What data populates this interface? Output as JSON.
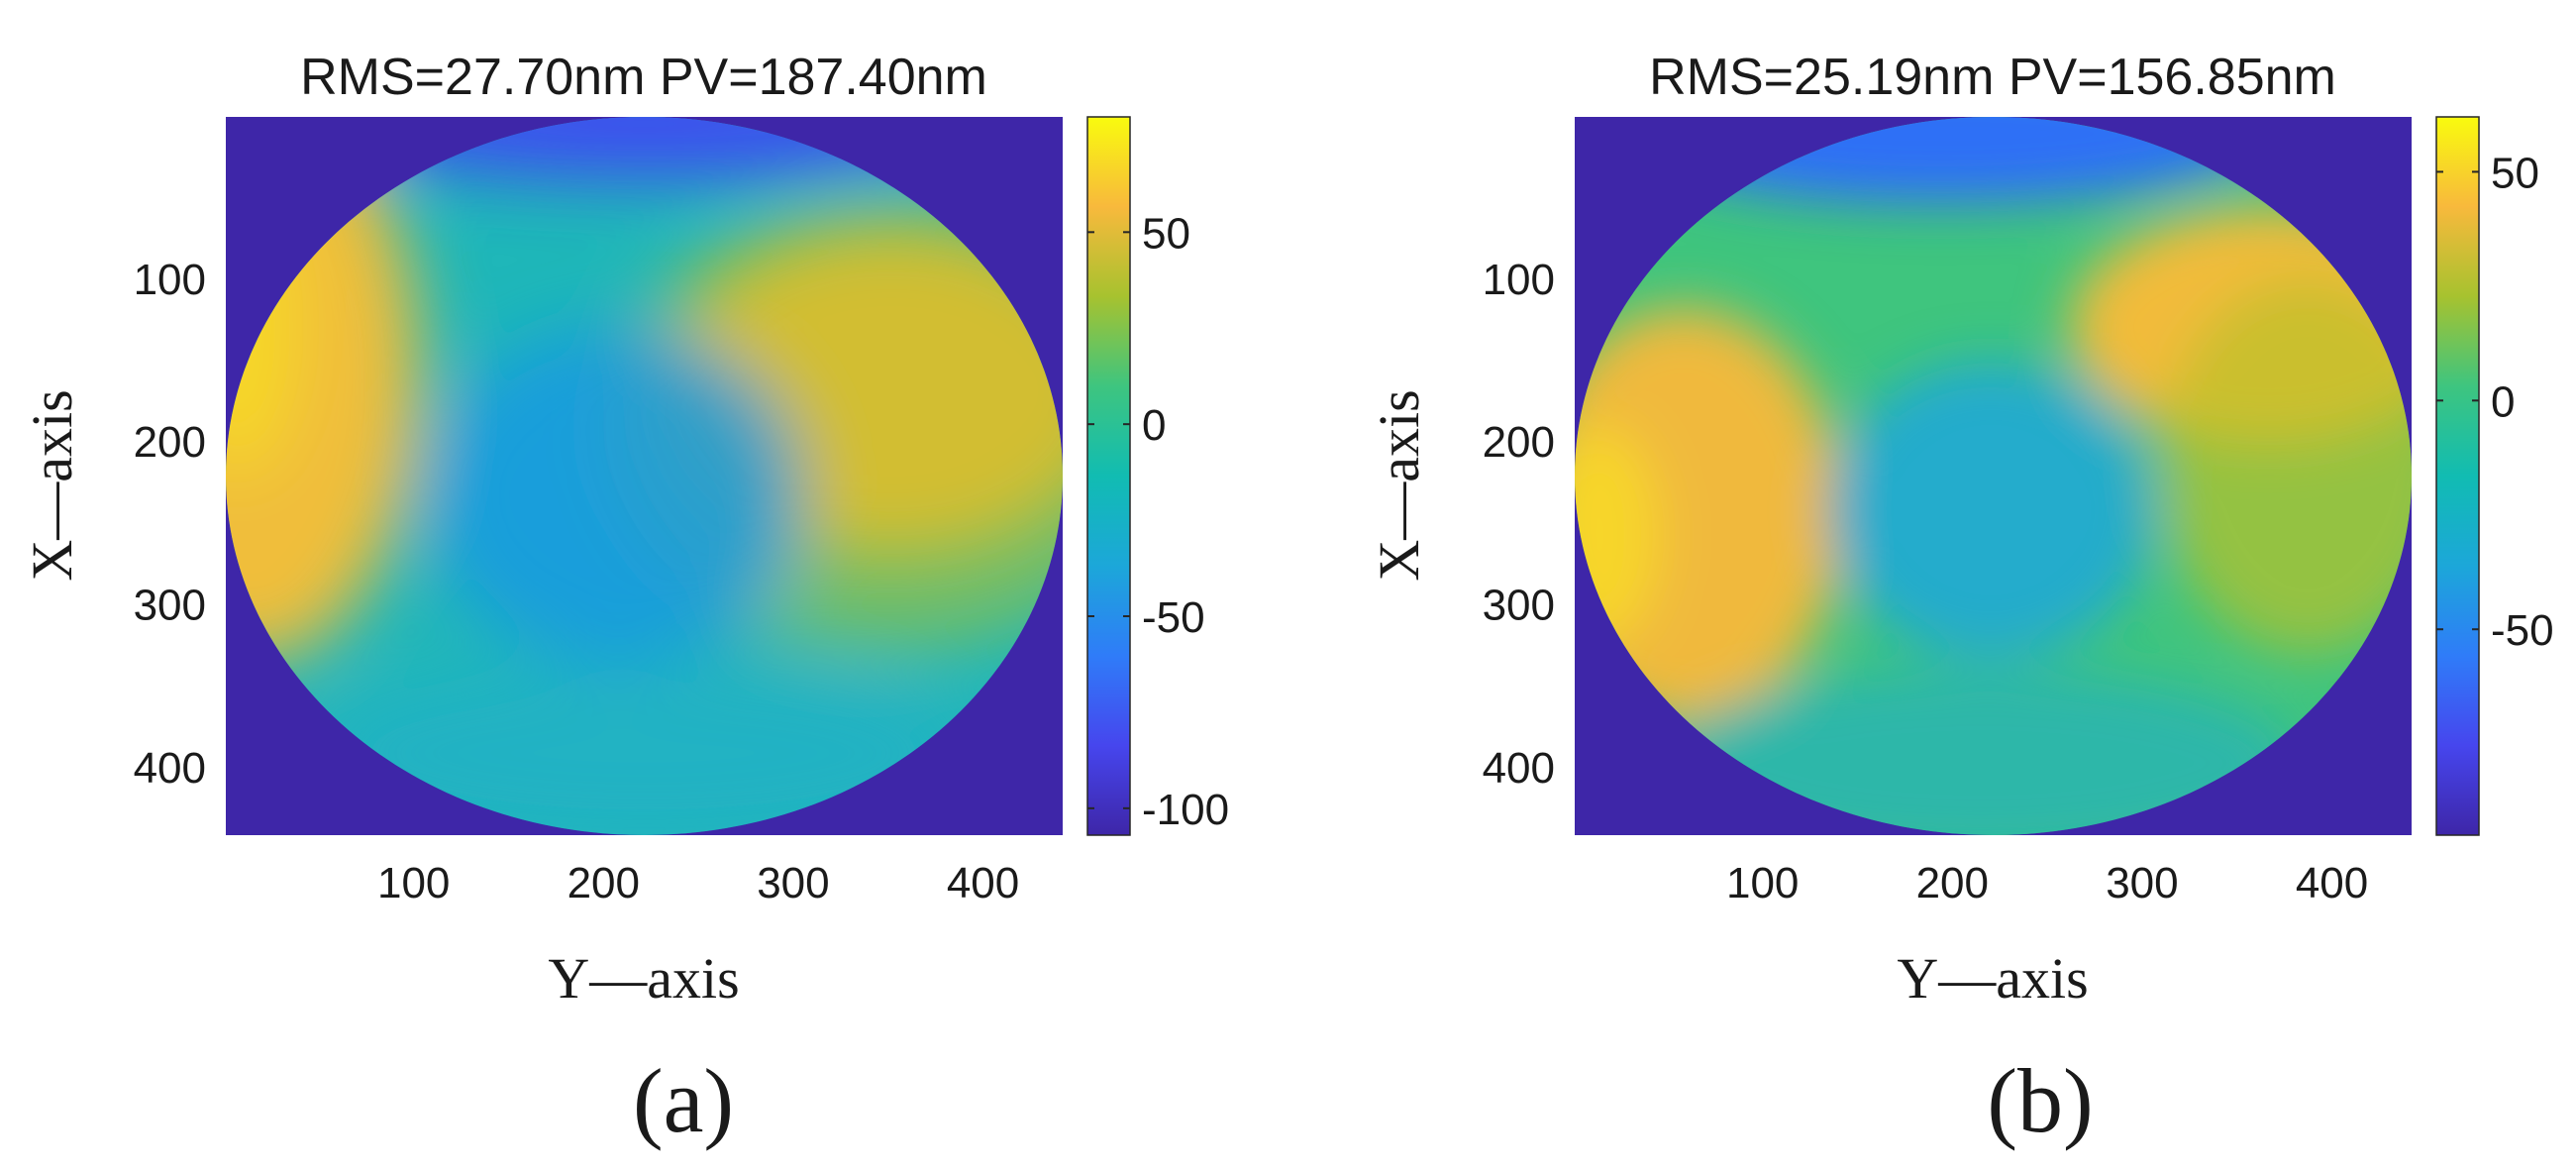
{
  "chart_data": [
    {
      "type": "heatmap",
      "panel_label": "(a)",
      "title": "RMS=27.70nm PV=187.40nm",
      "xlabel": "Y—axis",
      "ylabel": "X—axis",
      "xlim": [
        1,
        442
      ],
      "ylim": [
        1,
        442
      ],
      "y_reversed": true,
      "x_ticks": [
        100,
        200,
        300,
        400
      ],
      "y_ticks": [
        100,
        200,
        300,
        400
      ],
      "colorbar": {
        "min": -107,
        "max": 80,
        "ticks": [
          50,
          0,
          -50,
          -100
        ]
      },
      "outside_aperture_value": -107,
      "aperture": "ellipse inscribed in the plotted area",
      "features": [
        {
          "description": "warm region left edge",
          "x": 20,
          "y": 160,
          "value": 60
        },
        {
          "description": "warm region right",
          "x": 350,
          "y": 170,
          "value": 55
        },
        {
          "description": "central depression",
          "x": 205,
          "y": 230,
          "value": -30
        },
        {
          "description": "cool band top edge",
          "x": 220,
          "y": 15,
          "value": -75
        }
      ]
    },
    {
      "type": "heatmap",
      "panel_label": "(b)",
      "title": "RMS=25.19nm PV=156.85nm",
      "xlabel": "Y—axis",
      "ylabel": "X—axis",
      "xlim": [
        1,
        442
      ],
      "ylim": [
        1,
        442
      ],
      "y_reversed": true,
      "x_ticks": [
        100,
        200,
        300,
        400
      ],
      "y_ticks": [
        100,
        200,
        300,
        400
      ],
      "colorbar": {
        "min": -95,
        "max": 62,
        "ticks": [
          50,
          0,
          -50
        ]
      },
      "outside_aperture_value": -95,
      "aperture": "ellipse inscribed in the plotted area",
      "features": [
        {
          "description": "warm region left edge",
          "x": 20,
          "y": 250,
          "value": 50
        },
        {
          "description": "warm region upper right",
          "x": 350,
          "y": 130,
          "value": 38
        },
        {
          "description": "central depression",
          "x": 215,
          "y": 250,
          "value": -20
        },
        {
          "description": "cool band top edge",
          "x": 200,
          "y": 20,
          "value": -70
        }
      ]
    }
  ]
}
